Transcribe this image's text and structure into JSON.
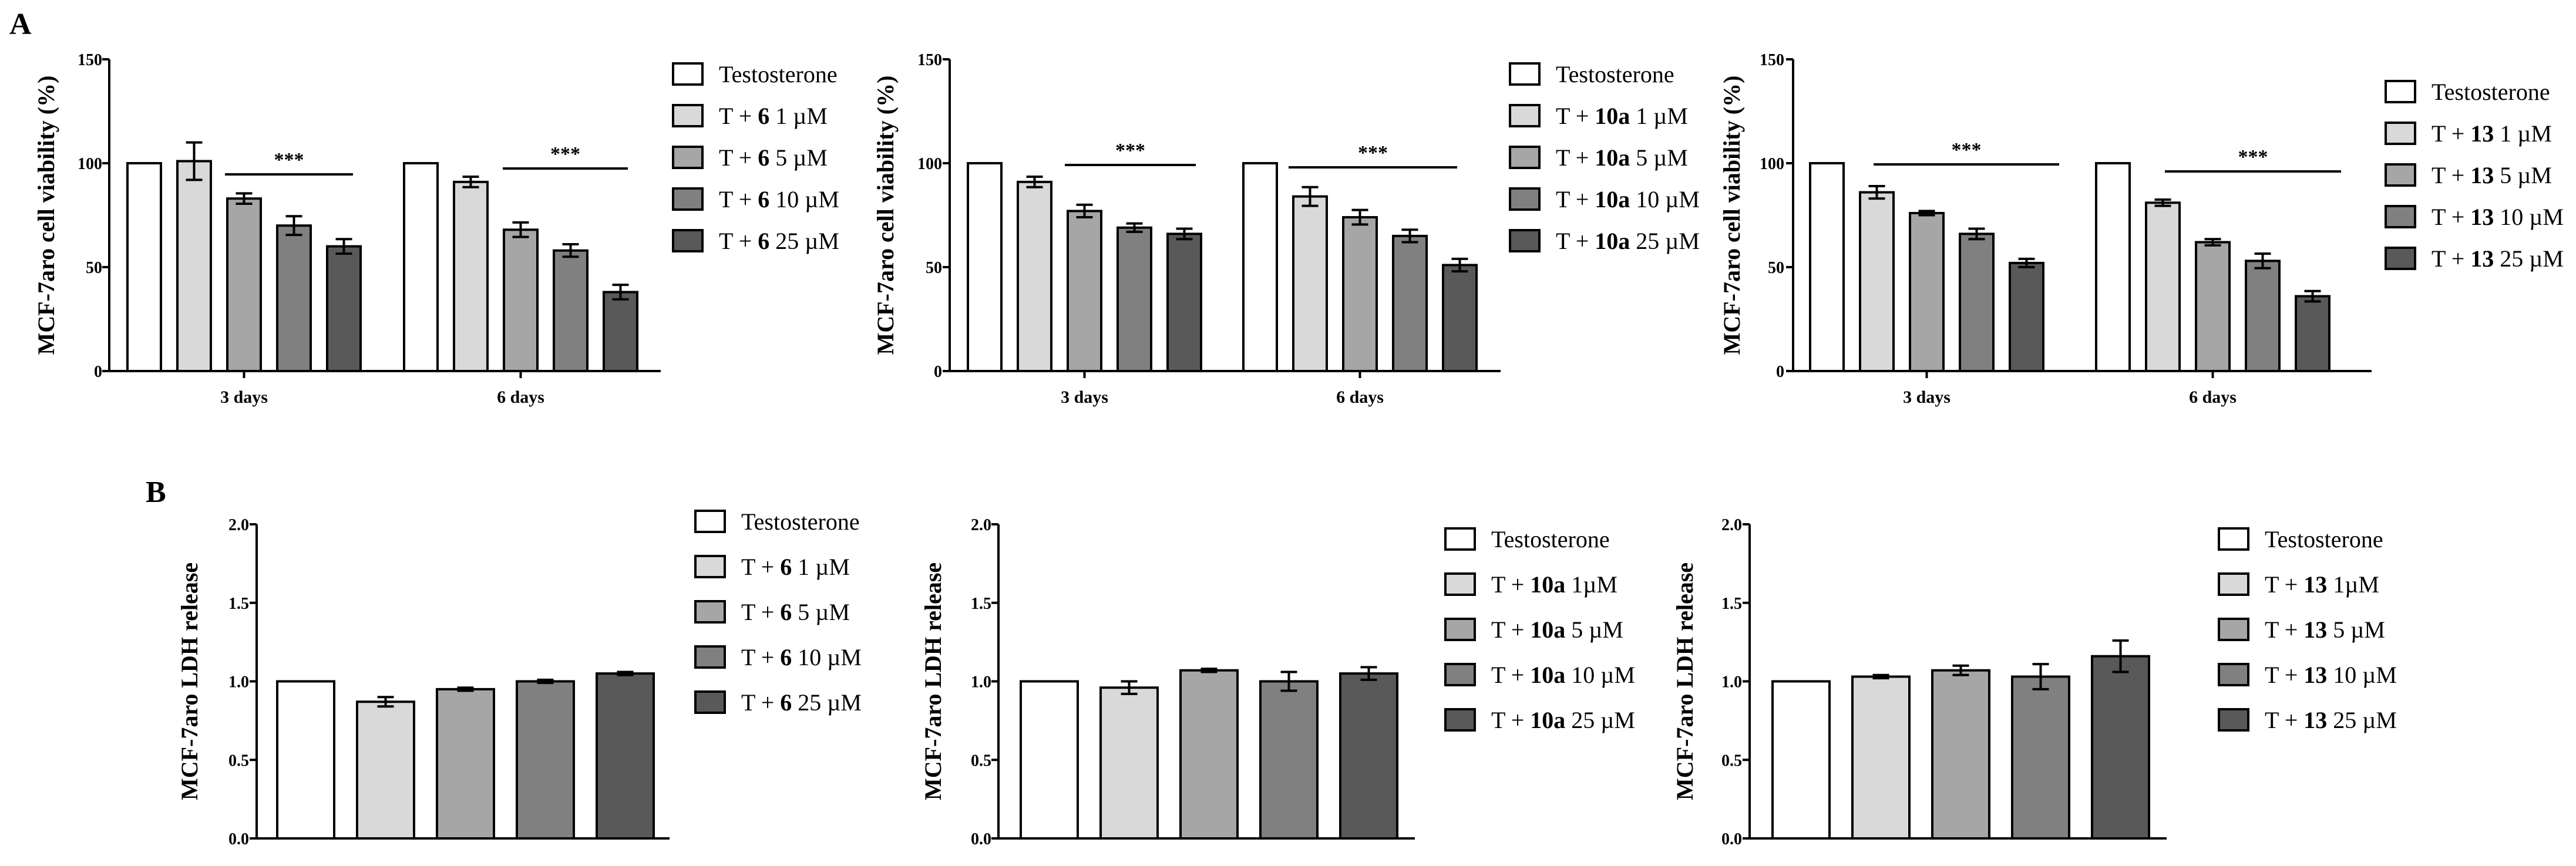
{
  "panels": [
    "A",
    "B"
  ],
  "colors": {
    "Testosterone": "#ffffff",
    "1": "#d9d9d9",
    "5": "#a6a6a6",
    "10": "#808080",
    "25": "#595959",
    "stroke": "#000000"
  },
  "chart_data": [
    {
      "type": "bar",
      "panel": "A",
      "ylabel": "MCF-7aro cell viability (%)",
      "ylim": [
        0,
        150
      ],
      "yticks": [
        "0",
        "50",
        "100",
        "150"
      ],
      "categories": [
        "3 days",
        "6 days"
      ],
      "significance": [
        "***",
        "***"
      ],
      "series": [
        {
          "name": "Testosterone",
          "key": "Testosterone",
          "values": [
            100,
            100
          ],
          "errors": [
            0,
            0
          ]
        },
        {
          "name": "T + 6 1 µM",
          "key": "1",
          "values": [
            101,
            91
          ],
          "errors": [
            9,
            2.5
          ]
        },
        {
          "name": "T + 6 5 µM",
          "key": "5",
          "values": [
            83,
            68
          ],
          "errors": [
            2.5,
            3.5
          ]
        },
        {
          "name": "T + 6 10 µM",
          "key": "10",
          "values": [
            70,
            58
          ],
          "errors": [
            4.5,
            3
          ]
        },
        {
          "name": "T + 6 25 µM",
          "key": "25",
          "values": [
            60,
            38
          ],
          "errors": [
            3.5,
            3.5
          ]
        }
      ],
      "legend": [
        {
          "pre": "Testosterone",
          "bold": "",
          "post": ""
        },
        {
          "pre": "T + ",
          "bold": "6",
          "post": " 1 µM"
        },
        {
          "pre": "T + ",
          "bold": "6",
          "post": " 5 µM"
        },
        {
          "pre": "T + ",
          "bold": "6",
          "post": " 10 µM"
        },
        {
          "pre": "T + ",
          "bold": "6",
          "post": " 25 µM"
        }
      ]
    },
    {
      "type": "bar",
      "panel": "A",
      "ylabel": "MCF-7aro cell viability (%)",
      "ylim": [
        0,
        150
      ],
      "yticks": [
        "0",
        "50",
        "100",
        "150"
      ],
      "categories": [
        "3 days",
        "6 days"
      ],
      "significance": [
        "***",
        "***"
      ],
      "series": [
        {
          "name": "Testosterone",
          "key": "Testosterone",
          "values": [
            100,
            100
          ],
          "errors": [
            0,
            0
          ]
        },
        {
          "name": "T + 10a 1 µM",
          "key": "1",
          "values": [
            91,
            84
          ],
          "errors": [
            2.5,
            4.5
          ]
        },
        {
          "name": "T + 10a 5 µM",
          "key": "5",
          "values": [
            77,
            74
          ],
          "errors": [
            3,
            3.5
          ]
        },
        {
          "name": "T + 10a 10 µM",
          "key": "10",
          "values": [
            69,
            65
          ],
          "errors": [
            2,
            3
          ]
        },
        {
          "name": "T + 10a 25 µM",
          "key": "25",
          "values": [
            66,
            51
          ],
          "errors": [
            2.5,
            3
          ]
        }
      ],
      "legend": [
        {
          "pre": "Testosterone",
          "bold": "",
          "post": ""
        },
        {
          "pre": "T + ",
          "bold": "10a",
          "post": " 1 µM"
        },
        {
          "pre": "T + ",
          "bold": "10a",
          "post": " 5 µM"
        },
        {
          "pre": "T + ",
          "bold": "10a",
          "post": " 10 µM"
        },
        {
          "pre": "T + ",
          "bold": "10a",
          "post": " 25 µM"
        }
      ]
    },
    {
      "type": "bar",
      "panel": "A",
      "ylabel": "MCF-7aro cell viability (%)",
      "ylim": [
        0,
        150
      ],
      "yticks": [
        "0",
        "50",
        "100",
        "150"
      ],
      "categories": [
        "3 days",
        "6 days"
      ],
      "significance": [
        "***",
        "***"
      ],
      "series": [
        {
          "name": "Testosterone",
          "key": "Testosterone",
          "values": [
            100,
            100
          ],
          "errors": [
            0,
            0
          ]
        },
        {
          "name": "T + 13 1 µM",
          "key": "1",
          "values": [
            86,
            81
          ],
          "errors": [
            3,
            1.5
          ]
        },
        {
          "name": "T + 13 5 µM",
          "key": "5",
          "values": [
            76,
            62
          ],
          "errors": [
            1,
            1.5
          ]
        },
        {
          "name": "T + 13 10 µM",
          "key": "10",
          "values": [
            66,
            53
          ],
          "errors": [
            2.5,
            3.5
          ]
        },
        {
          "name": "T + 13 25 µM",
          "key": "25",
          "values": [
            52,
            36
          ],
          "errors": [
            2,
            2.5
          ]
        }
      ],
      "legend": [
        {
          "pre": "Testosterone",
          "bold": "",
          "post": ""
        },
        {
          "pre": "T + ",
          "bold": "13",
          "post": " 1 µM"
        },
        {
          "pre": "T + ",
          "bold": "13",
          "post": " 5 µM"
        },
        {
          "pre": "T + ",
          "bold": "13",
          "post": " 10 µM"
        },
        {
          "pre": "T + ",
          "bold": "13",
          "post": " 25 µM"
        }
      ]
    },
    {
      "type": "bar",
      "panel": "B",
      "ylabel": "MCF-7aro LDH release",
      "ylim": [
        0,
        2.0
      ],
      "yticks": [
        "0.0",
        "0.5",
        "1.0",
        "1.5",
        "2.0"
      ],
      "categories": [
        ""
      ],
      "significance": [],
      "series": [
        {
          "name": "Testosterone",
          "key": "Testosterone",
          "values": [
            1.0
          ],
          "errors": [
            0
          ]
        },
        {
          "name": "T + 6 1 µM",
          "key": "1",
          "values": [
            0.87
          ],
          "errors": [
            0.03
          ]
        },
        {
          "name": "T + 6 5 µM",
          "key": "5",
          "values": [
            0.95
          ],
          "errors": [
            0.01
          ]
        },
        {
          "name": "T + 6 10 µM",
          "key": "10",
          "values": [
            1.0
          ],
          "errors": [
            0.01
          ]
        },
        {
          "name": "T + 6 25 µM",
          "key": "25",
          "values": [
            1.05
          ],
          "errors": [
            0.01
          ]
        }
      ],
      "legend": [
        {
          "pre": "Testosterone",
          "bold": "",
          "post": ""
        },
        {
          "pre": "T + ",
          "bold": "6",
          "post": " 1 µM"
        },
        {
          "pre": "T + ",
          "bold": "6",
          "post": "  5 µM"
        },
        {
          "pre": "T + ",
          "bold": "6",
          "post": " 10 µM"
        },
        {
          "pre": "T + ",
          "bold": "6",
          "post": " 25 µM"
        }
      ]
    },
    {
      "type": "bar",
      "panel": "B",
      "ylabel": "MCF-7aro LDH release",
      "ylim": [
        0,
        2.0
      ],
      "yticks": [
        "0.0",
        "0.5",
        "1.0",
        "1.5",
        "2.0"
      ],
      "categories": [
        ""
      ],
      "significance": [],
      "series": [
        {
          "name": "Testosterone",
          "key": "Testosterone",
          "values": [
            1.0
          ],
          "errors": [
            0
          ]
        },
        {
          "name": "T + 10a 1µM",
          "key": "1",
          "values": [
            0.96
          ],
          "errors": [
            0.04
          ]
        },
        {
          "name": "T + 10a 5 µM",
          "key": "5",
          "values": [
            1.07
          ],
          "errors": [
            0.01
          ]
        },
        {
          "name": "T + 10a 10 µM",
          "key": "10",
          "values": [
            1.0
          ],
          "errors": [
            0.06
          ]
        },
        {
          "name": "T + 10a 25 µM",
          "key": "25",
          "values": [
            1.05
          ],
          "errors": [
            0.04
          ]
        }
      ],
      "legend": [
        {
          "pre": "Testosterone",
          "bold": "",
          "post": ""
        },
        {
          "pre": "T + ",
          "bold": "10a",
          "post": " 1µM"
        },
        {
          "pre": "T + ",
          "bold": "10a",
          "post": " 5 µM"
        },
        {
          "pre": "T + ",
          "bold": "10a",
          "post": " 10 µM"
        },
        {
          "pre": "T + ",
          "bold": "10a",
          "post": " 25 µM"
        }
      ]
    },
    {
      "type": "bar",
      "panel": "B",
      "ylabel": "MCF-7aro LDH release",
      "ylim": [
        0,
        2.0
      ],
      "yticks": [
        "0.0",
        "0.5",
        "1.0",
        "1.5",
        "2.0"
      ],
      "categories": [
        ""
      ],
      "significance": [],
      "series": [
        {
          "name": "Testosterone",
          "key": "Testosterone",
          "values": [
            1.0
          ],
          "errors": [
            0
          ]
        },
        {
          "name": "T + 13 1µM",
          "key": "1",
          "values": [
            1.03
          ],
          "errors": [
            0.01
          ]
        },
        {
          "name": "T + 13 5 µM",
          "key": "5",
          "values": [
            1.07
          ],
          "errors": [
            0.03
          ]
        },
        {
          "name": "T + 13 10 µM",
          "key": "10",
          "values": [
            1.03
          ],
          "errors": [
            0.08
          ]
        },
        {
          "name": "T + 13 25 µM",
          "key": "25",
          "values": [
            1.16
          ],
          "errors": [
            0.1
          ]
        }
      ],
      "legend": [
        {
          "pre": "Testosterone",
          "bold": "",
          "post": ""
        },
        {
          "pre": "T + ",
          "bold": "13",
          "post": " 1µM"
        },
        {
          "pre": "T + ",
          "bold": "13",
          "post": " 5 µM"
        },
        {
          "pre": "T + ",
          "bold": "13",
          "post": " 10 µM"
        },
        {
          "pre": "T + ",
          "bold": "13",
          "post": " 25 µM"
        }
      ]
    }
  ]
}
